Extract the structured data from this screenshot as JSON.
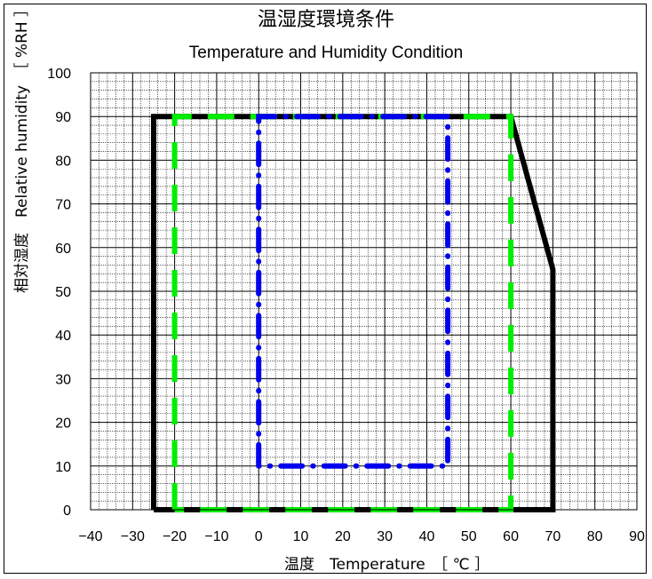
{
  "chart_data": {
    "type": "line",
    "title": "温湿度環境条件",
    "subtitle": "Temperature and Humidity Condition",
    "xlabel": "温度　Temperature　［ ℃ ］",
    "ylabel": "相対湿度　Relative humidity　［ %RH ］",
    "xlim": [
      -40,
      90
    ],
    "ylim": [
      0,
      100
    ],
    "x_ticks": [
      -40,
      -30,
      -20,
      -10,
      0,
      10,
      20,
      30,
      40,
      50,
      60,
      70,
      80,
      90
    ],
    "y_ticks": [
      0,
      10,
      20,
      30,
      40,
      50,
      60,
      70,
      80,
      90,
      100
    ],
    "grid": "on",
    "series": [
      {
        "color": "#000000",
        "style": "solid",
        "points": [
          [
            -25,
            0
          ],
          [
            -25,
            90
          ],
          [
            60,
            90
          ],
          [
            70,
            55
          ],
          [
            70,
            0
          ],
          [
            -25,
            0
          ]
        ]
      },
      {
        "color": "#00ee00",
        "style": "dash",
        "points": [
          [
            -20,
            0
          ],
          [
            -20,
            90
          ],
          [
            60,
            90
          ],
          [
            60,
            0
          ],
          [
            -20,
            0
          ]
        ]
      },
      {
        "color": "#0000ee",
        "style": "dash-dot",
        "points": [
          [
            0,
            10
          ],
          [
            0,
            90
          ],
          [
            45,
            90
          ],
          [
            45,
            10
          ],
          [
            0,
            10
          ]
        ]
      }
    ]
  }
}
